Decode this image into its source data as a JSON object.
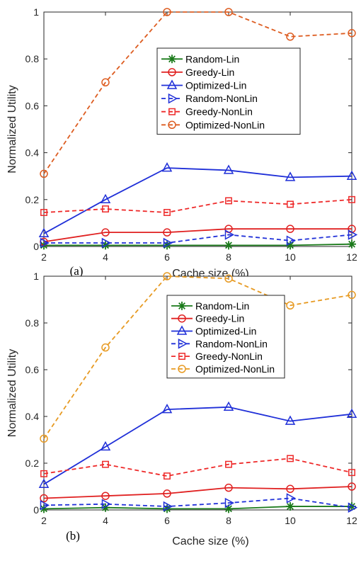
{
  "colors": {
    "Random-Lin": "#1a7a1a",
    "Greedy-Lin": "#e02020",
    "Optimized-Lin": "#1f2fd8",
    "Random-NonLin": "#1f2fd8",
    "Greedy-NonLin": "#ee2a2a",
    "Optimized-NonLin": "#dd5c20"
  },
  "chart_data": [
    {
      "type": "line",
      "panel_label": "(a)",
      "xlabel": "Cache size (%)",
      "ylabel": "Normalized Utility",
      "x": [
        2,
        4,
        6,
        8,
        10,
        12
      ],
      "xticks": [
        "2",
        "4",
        "6",
        "8",
        "10",
        "12"
      ],
      "yticks": [
        "0",
        "0.2",
        "0.4",
        "0.6",
        "0.8",
        "1"
      ],
      "xlim": [
        2,
        12
      ],
      "ylim": [
        0,
        1
      ],
      "grid": false,
      "legend_position": "upper-center",
      "series": [
        {
          "name": "Random-Lin",
          "style": "solid",
          "marker": "star",
          "color": "#1a7a1a",
          "values": [
            0.005,
            0.005,
            0.005,
            0.005,
            0.005,
            0.01
          ]
        },
        {
          "name": "Greedy-Lin",
          "style": "solid",
          "marker": "circle",
          "color": "#e02020",
          "values": [
            0.02,
            0.06,
            0.06,
            0.075,
            0.075,
            0.075
          ]
        },
        {
          "name": "Optimized-Lin",
          "style": "solid",
          "marker": "triangle",
          "color": "#1f2fd8",
          "values": [
            0.055,
            0.2,
            0.335,
            0.325,
            0.295,
            0.3
          ]
        },
        {
          "name": "Random-NonLin",
          "style": "dashed",
          "marker": "triangle-right",
          "color": "#1f2fd8",
          "values": [
            0.015,
            0.015,
            0.015,
            0.05,
            0.025,
            0.05
          ]
        },
        {
          "name": "Greedy-NonLin",
          "style": "dashed",
          "marker": "square",
          "color": "#ee2a2a",
          "values": [
            0.145,
            0.16,
            0.145,
            0.195,
            0.18,
            0.2
          ]
        },
        {
          "name": "Optimized-NonLin",
          "style": "dashed",
          "marker": "circle",
          "color": "#dd5c20",
          "values": [
            0.31,
            0.7,
            1.0,
            1.0,
            0.895,
            0.91
          ]
        }
      ]
    },
    {
      "type": "line",
      "panel_label": "(b)",
      "xlabel": "Cache size (%)",
      "ylabel": "Normalized Utility",
      "x": [
        2,
        4,
        6,
        8,
        10,
        12
      ],
      "xticks": [
        "2",
        "4",
        "6",
        "8",
        "10",
        "12"
      ],
      "yticks": [
        "0",
        "0.2",
        "0.4",
        "0.6",
        "0.8",
        "1"
      ],
      "xlim": [
        2,
        12
      ],
      "ylim": [
        0,
        1
      ],
      "grid": false,
      "legend_position": "upper-center",
      "series": [
        {
          "name": "Random-Lin",
          "style": "solid",
          "marker": "star",
          "color": "#1a7a1a",
          "values": [
            0.005,
            0.01,
            0.005,
            0.005,
            0.015,
            0.015
          ]
        },
        {
          "name": "Greedy-Lin",
          "style": "solid",
          "marker": "circle",
          "color": "#e02020",
          "values": [
            0.05,
            0.06,
            0.07,
            0.095,
            0.09,
            0.1
          ]
        },
        {
          "name": "Optimized-Lin",
          "style": "solid",
          "marker": "triangle",
          "color": "#1f2fd8",
          "values": [
            0.11,
            0.27,
            0.43,
            0.44,
            0.38,
            0.41
          ]
        },
        {
          "name": "Random-NonLin",
          "style": "dashed",
          "marker": "triangle-right",
          "color": "#1f2fd8",
          "values": [
            0.02,
            0.025,
            0.015,
            0.03,
            0.05,
            0.01
          ]
        },
        {
          "name": "Greedy-NonLin",
          "style": "dashed",
          "marker": "square",
          "color": "#ee2a2a",
          "values": [
            0.155,
            0.195,
            0.145,
            0.195,
            0.22,
            0.16
          ]
        },
        {
          "name": "Optimized-NonLin",
          "style": "dashed",
          "marker": "circle",
          "color": "#e79a22",
          "values": [
            0.305,
            0.695,
            1.0,
            0.99,
            0.875,
            0.92
          ]
        }
      ]
    }
  ]
}
